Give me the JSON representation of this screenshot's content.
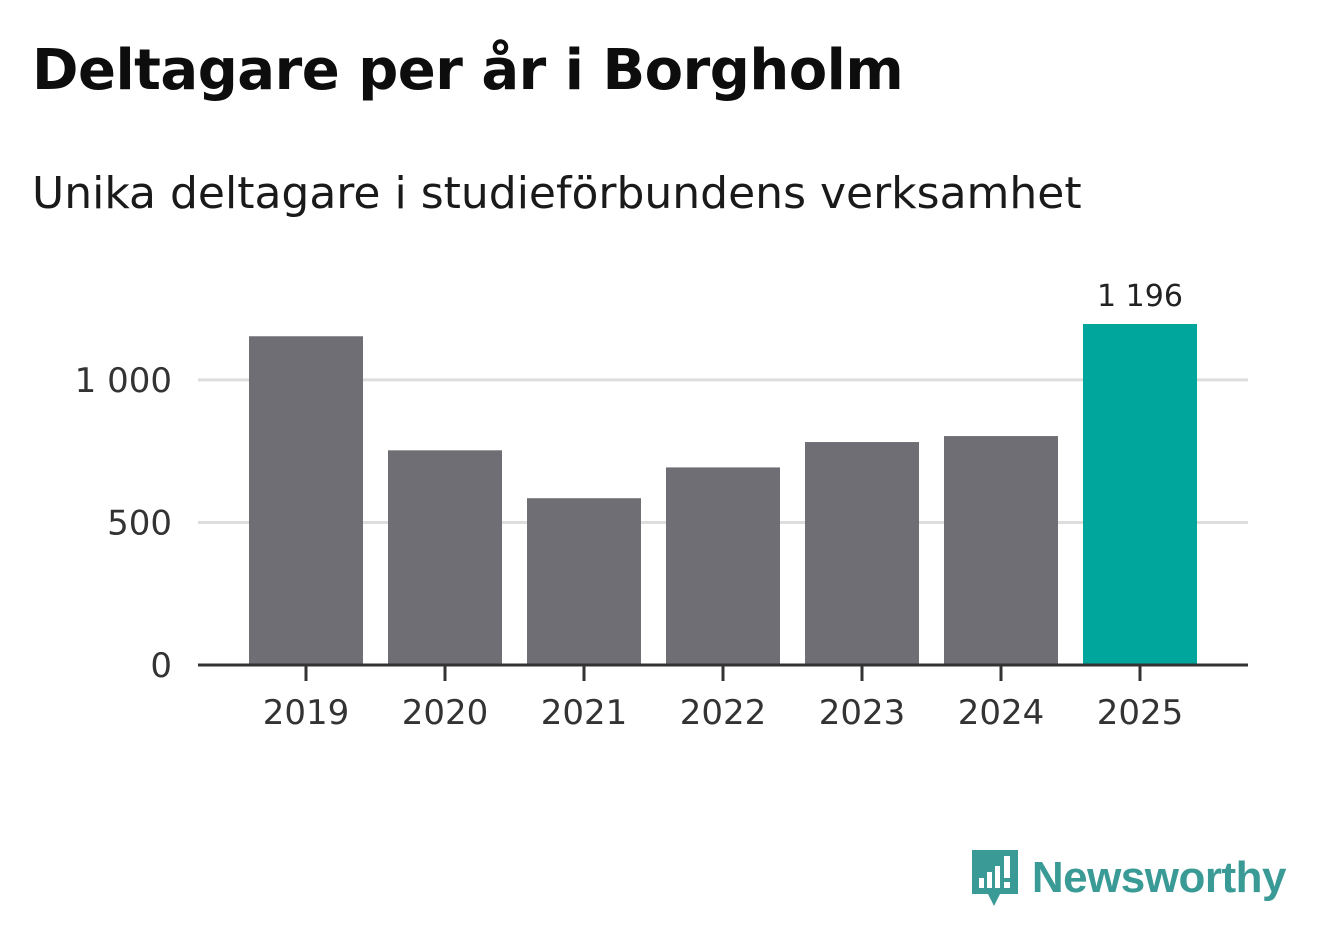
{
  "header": {
    "title": "Deltagare per år i Borgholm",
    "subtitle": "Unika deltagare i studieförbundens verksamhet"
  },
  "brand": {
    "name": "Newsworthy",
    "icon": "newsworthy-logo-icon",
    "color": "#3a9a96"
  },
  "colors": {
    "bar": "#6f6e74",
    "highlight": "#00a59b",
    "grid": "#dddddd",
    "axis": "#333333",
    "tick_text": "#333333"
  },
  "chart_data": {
    "type": "bar",
    "title": "Deltagare per år i Borgholm",
    "subtitle": "Unika deltagare i studieförbundens verksamhet",
    "categories": [
      "2019",
      "2020",
      "2021",
      "2022",
      "2023",
      "2024",
      "2025"
    ],
    "values": [
      1153,
      753,
      585,
      693,
      782,
      803,
      1196
    ],
    "highlight_index": 6,
    "highlight_label": "1 196",
    "xlabel": "",
    "ylabel": "",
    "ylim": [
      0,
      1196
    ],
    "yticks": [
      0,
      500,
      1000
    ],
    "ytick_labels": [
      "0",
      "500",
      "1 000"
    ],
    "grid": true
  }
}
